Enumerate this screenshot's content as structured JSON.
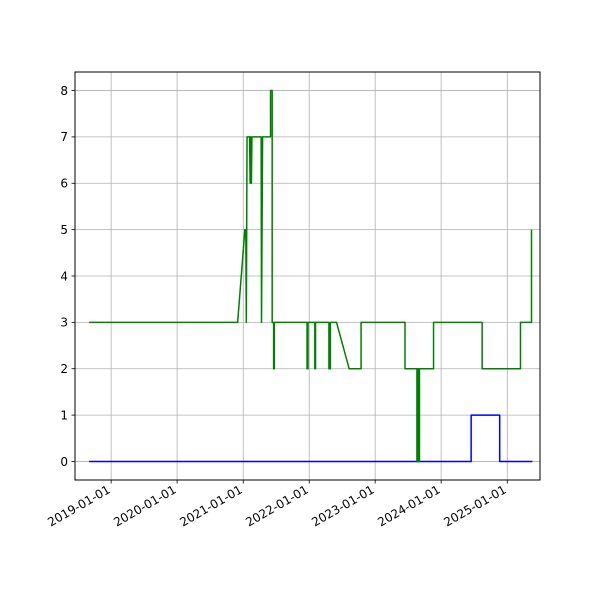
{
  "chart_data": {
    "type": "line",
    "title": "",
    "xlabel": "",
    "ylabel": "",
    "x_axis_type": "date",
    "xlim": [
      "2018-06-15",
      "2025-07-01"
    ],
    "ylim": [
      -0.4,
      8.4
    ],
    "x_ticks": [
      "2019-01-01",
      "2020-01-01",
      "2021-01-01",
      "2022-01-01",
      "2023-01-01",
      "2024-01-01",
      "2025-01-01"
    ],
    "y_ticks": [
      0,
      1,
      2,
      3,
      4,
      5,
      6,
      7,
      8
    ],
    "grid": true,
    "legend": "none",
    "series": [
      {
        "color": "#0000ff",
        "points": [
          [
            "2018-09-01",
            0
          ],
          [
            "2024-06-15",
            0
          ],
          [
            "2024-06-15",
            1
          ],
          [
            "2024-11-20",
            1
          ],
          [
            "2024-11-20",
            0
          ],
          [
            "2025-05-20",
            0
          ]
        ]
      },
      {
        "color": "#008000",
        "points": [
          [
            "2018-09-01",
            3
          ],
          [
            "2020-12-01",
            3
          ],
          [
            "2021-01-10",
            5
          ],
          [
            "2021-01-15",
            5
          ],
          [
            "2021-01-18",
            3
          ],
          [
            "2021-01-22",
            7
          ],
          [
            "2021-02-05",
            7
          ],
          [
            "2021-02-08",
            6
          ],
          [
            "2021-02-12",
            7
          ],
          [
            "2021-02-15",
            6
          ],
          [
            "2021-02-18",
            7
          ],
          [
            "2021-04-10",
            7
          ],
          [
            "2021-04-12",
            3
          ],
          [
            "2021-04-18",
            7
          ],
          [
            "2021-06-01",
            7
          ],
          [
            "2021-06-01",
            8
          ],
          [
            "2021-06-10",
            8
          ],
          [
            "2021-06-10",
            3
          ],
          [
            "2021-06-18",
            3
          ],
          [
            "2021-06-18",
            2
          ],
          [
            "2021-06-22",
            2
          ],
          [
            "2021-06-22",
            3
          ],
          [
            "2021-12-20",
            3
          ],
          [
            "2021-12-20",
            2
          ],
          [
            "2021-12-25",
            2
          ],
          [
            "2021-12-25",
            3
          ],
          [
            "2022-02-01",
            3
          ],
          [
            "2022-02-01",
            2
          ],
          [
            "2022-02-05",
            2
          ],
          [
            "2022-02-05",
            3
          ],
          [
            "2022-04-20",
            3
          ],
          [
            "2022-04-20",
            2
          ],
          [
            "2022-04-28",
            2
          ],
          [
            "2022-04-28",
            3
          ],
          [
            "2022-06-01",
            3
          ],
          [
            "2022-08-10",
            2
          ],
          [
            "2022-10-15",
            2
          ],
          [
            "2022-10-15",
            3
          ],
          [
            "2023-06-15",
            3
          ],
          [
            "2023-06-15",
            2
          ],
          [
            "2023-08-20",
            2
          ],
          [
            "2023-08-20",
            0
          ],
          [
            "2023-08-25",
            0
          ],
          [
            "2023-08-25",
            2
          ],
          [
            "2023-08-30",
            2
          ],
          [
            "2023-08-30",
            0
          ],
          [
            "2023-09-03",
            0
          ],
          [
            "2023-09-03",
            2
          ],
          [
            "2023-11-20",
            2
          ],
          [
            "2023-11-20",
            3
          ],
          [
            "2024-08-15",
            3
          ],
          [
            "2024-08-15",
            2
          ],
          [
            "2025-03-15",
            2
          ],
          [
            "2025-03-15",
            3
          ],
          [
            "2025-05-15",
            3
          ],
          [
            "2025-05-15",
            5
          ]
        ]
      }
    ]
  }
}
